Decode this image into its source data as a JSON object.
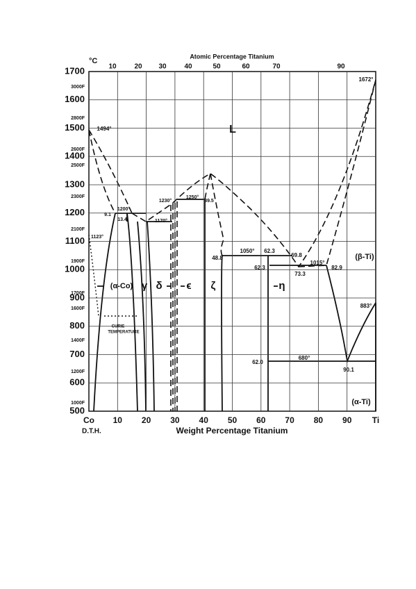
{
  "diagram": {
    "unit": "°C",
    "top_axis_title": "Atomic Percentage Titanium",
    "top_ticks": [
      "10",
      "20",
      "30",
      "40",
      "50",
      "60",
      "70",
      "90"
    ],
    "celsius_ticks": [
      "1700",
      "1600",
      "1500",
      "1400",
      "1300",
      "1200",
      "1100",
      "1000",
      "900",
      "800",
      "700",
      "600",
      "500"
    ],
    "fahrenheit_ticks": [
      "3000F",
      "2800F",
      "2600F",
      "2500F",
      "2300F",
      "2100F",
      "1900F",
      "1700F",
      "1600F",
      "1400F",
      "1200F",
      "1000F"
    ],
    "bottom_ticks": [
      "Co",
      "10",
      "20",
      "30",
      "40",
      "50",
      "60",
      "70",
      "80",
      "90",
      "Ti"
    ],
    "bottom_axis_title": "Weight Percentage Titanium",
    "author": "D.T.H.",
    "labels": [
      "1494°",
      "1672°",
      "L",
      "1230°",
      "1250°",
      "39.5",
      "9.1",
      "1200°",
      "13.4",
      "1170°",
      "1123°",
      "1050°",
      "62.3",
      "69.8",
      "48.8",
      "62.3",
      "73.3",
      "1015°",
      "82.9",
      "(β-Ti)",
      "(α-Co)",
      "γ",
      "δ",
      "ϵ",
      "ζ",
      "η",
      "883°",
      "680°",
      "62.0",
      "90.1",
      "(α-Ti)",
      "CURIE",
      "TEMPERATURE"
    ]
  }
}
